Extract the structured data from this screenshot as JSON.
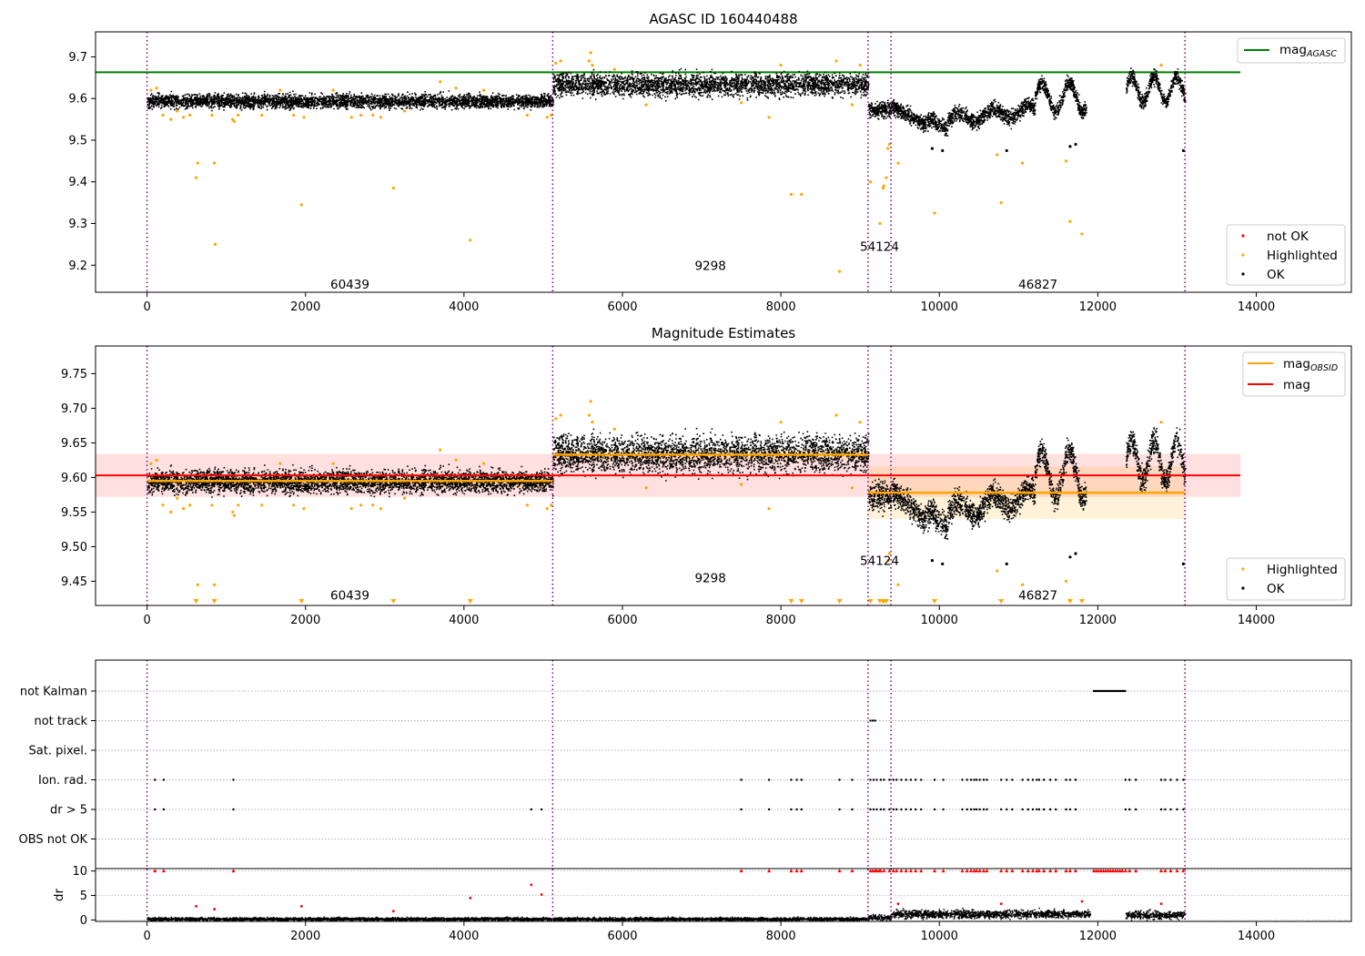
{
  "chart_data": [
    {
      "type": "scatter",
      "title": "AGASC ID 160440488",
      "xlim": [
        -650,
        15200
      ],
      "ylim": [
        9.135,
        9.76
      ],
      "x_ticks": [
        0,
        2000,
        4000,
        6000,
        8000,
        10000,
        12000,
        14000
      ],
      "y_ticks": [
        9.2,
        9.3,
        9.4,
        9.5,
        9.6,
        9.7
      ],
      "y_tick_labels": [
        "9.2",
        "9.3",
        "9.4",
        "9.5",
        "9.6",
        "9.7"
      ],
      "obs_boundaries": [
        0,
        5120,
        9100,
        9390,
        13100
      ],
      "obsids": [
        {
          "label": "60439",
          "x": 2560,
          "y": 9.155
        },
        {
          "label": "9298",
          "x": 7110,
          "y": 9.2
        },
        {
          "label": "54124",
          "x": 9245,
          "y": 9.245
        },
        {
          "label": "46827",
          "x": 11245,
          "y": 9.155
        }
      ],
      "hlines": [
        {
          "name": "mag_AGASC",
          "y": 9.663,
          "x0": -650,
          "x1": 13800,
          "color": "#008000"
        }
      ],
      "legend_top": {
        "placement": "top-right",
        "entries": [
          {
            "main": "mag",
            "sub": "AGASC",
            "color": "#008000"
          }
        ]
      },
      "legend_bottom": {
        "placement": "bottom-right",
        "entries": [
          {
            "label": "not OK",
            "color": "#ff0000"
          },
          {
            "label": "Highlighted",
            "color": "#ffa500"
          },
          {
            "label": "OK",
            "color": "#000000"
          }
        ]
      },
      "series": [
        {
          "name": "OK",
          "color": "#000000",
          "segments": [
            {
              "x0": 0,
              "x1": 5120,
              "model": "flat",
              "center": 9.595,
              "spread": 0.018
            },
            {
              "x0": 5120,
              "x1": 9100,
              "model": "flat",
              "center": 9.635,
              "spread": 0.03
            },
            {
              "x0": 9100,
              "x1": 9390,
              "model": "flat",
              "center": 9.575,
              "spread": 0.022
            },
            {
              "x0": 9390,
              "x1": 11850,
              "model": "wave",
              "spread": 0.02
            },
            {
              "x0": 12350,
              "x1": 13100,
              "model": "wave",
              "spread": 0.02
            }
          ]
        },
        {
          "name": "Highlighted",
          "color": "#ffa500",
          "points": [
            [
              50,
              9.62
            ],
            [
              120,
              9.625
            ],
            [
              200,
              9.56
            ],
            [
              300,
              9.55
            ],
            [
              380,
              9.57
            ],
            [
              460,
              9.555
            ],
            [
              540,
              9.56
            ],
            [
              620,
              9.41
            ],
            [
              640,
              9.445
            ],
            [
              820,
              9.56
            ],
            [
              850,
              9.445
            ],
            [
              860,
              9.25
            ],
            [
              1080,
              9.55
            ],
            [
              1100,
              9.545
            ],
            [
              1150,
              9.56
            ],
            [
              1450,
              9.56
            ],
            [
              1680,
              9.62
            ],
            [
              1850,
              9.56
            ],
            [
              1950,
              9.345
            ],
            [
              1980,
              9.555
            ],
            [
              2350,
              9.62
            ],
            [
              2580,
              9.555
            ],
            [
              2700,
              9.56
            ],
            [
              2850,
              9.56
            ],
            [
              2950,
              9.555
            ],
            [
              3110,
              9.385
            ],
            [
              3250,
              9.57
            ],
            [
              3700,
              9.64
            ],
            [
              3900,
              9.625
            ],
            [
              4080,
              9.26
            ],
            [
              4250,
              9.62
            ],
            [
              4800,
              9.56
            ],
            [
              5050,
              9.555
            ],
            [
              5100,
              9.56
            ],
            [
              5160,
              9.685
            ],
            [
              5220,
              9.69
            ],
            [
              5580,
              9.69
            ],
            [
              5600,
              9.71
            ],
            [
              5620,
              9.68
            ],
            [
              5900,
              9.67
            ],
            [
              6300,
              9.585
            ],
            [
              7500,
              9.59
            ],
            [
              7850,
              9.555
            ],
            [
              8000,
              9.68
            ],
            [
              8130,
              9.37
            ],
            [
              8260,
              9.37
            ],
            [
              8700,
              9.69
            ],
            [
              8740,
              9.185
            ],
            [
              8900,
              9.585
            ],
            [
              9000,
              9.68
            ],
            [
              9130,
              9.4
            ],
            [
              9250,
              9.3
            ],
            [
              9290,
              9.385
            ],
            [
              9300,
              9.39
            ],
            [
              9330,
              9.41
            ],
            [
              9350,
              9.48
            ],
            [
              9370,
              9.49
            ],
            [
              9480,
              9.445
            ],
            [
              9940,
              9.325
            ],
            [
              10730,
              9.465
            ],
            [
              10780,
              9.35
            ],
            [
              11050,
              9.445
            ],
            [
              11600,
              9.45
            ],
            [
              11650,
              9.305
            ],
            [
              11800,
              9.275
            ],
            [
              12800,
              9.68
            ]
          ]
        },
        {
          "name": "OK outliers",
          "color": "#000000",
          "points": [
            [
              9910,
              9.48
            ],
            [
              10040,
              9.475
            ],
            [
              10850,
              9.475
            ],
            [
              11650,
              9.485
            ],
            [
              11720,
              9.49
            ],
            [
              13080,
              9.475
            ]
          ]
        }
      ]
    },
    {
      "type": "scatter",
      "title": "Magnitude Estimates",
      "xlim": [
        -650,
        15200
      ],
      "ylim": [
        9.415,
        9.79
      ],
      "x_ticks": [
        0,
        2000,
        4000,
        6000,
        8000,
        10000,
        12000,
        14000
      ],
      "y_ticks": [
        9.45,
        9.5,
        9.55,
        9.6,
        9.65,
        9.7,
        9.75
      ],
      "y_tick_labels": [
        "9.45",
        "9.50",
        "9.55",
        "9.60",
        "9.65",
        "9.70",
        "9.75"
      ],
      "obs_boundaries": [
        0,
        5120,
        9100,
        9390,
        13100
      ],
      "obsids": [
        {
          "label": "60439",
          "x": 2560,
          "y": 9.43
        },
        {
          "label": "9298",
          "x": 7110,
          "y": 9.455
        },
        {
          "label": "54124",
          "x": 9245,
          "y": 9.48
        },
        {
          "label": "46827",
          "x": 11245,
          "y": 9.43
        }
      ],
      "mag_line": {
        "name": "mag",
        "y": 9.603,
        "band": [
          9.572,
          9.634
        ],
        "x0": -650,
        "x1": 13800,
        "color": "#ff0000"
      },
      "mag_obsid": [
        {
          "x0": 0,
          "x1": 5120,
          "y": 9.595,
          "band": [
            9.585,
            9.605
          ]
        },
        {
          "x0": 5120,
          "x1": 9100,
          "y": 9.633,
          "band": [
            9.625,
            9.641
          ]
        },
        {
          "x0": 9100,
          "x1": 13100,
          "y": 9.578,
          "band": [
            9.54,
            9.616
          ]
        }
      ],
      "legend_top": {
        "placement": "top-right",
        "entries": [
          {
            "main": "mag",
            "sub": "OBSID",
            "color": "#ffa500"
          },
          {
            "main": "mag",
            "sub": "",
            "color": "#ff0000"
          }
        ]
      },
      "legend_bottom": {
        "placement": "bottom-right",
        "entries": [
          {
            "label": "Highlighted",
            "color": "#ffa500"
          },
          {
            "label": "OK",
            "color": "#000000"
          }
        ]
      },
      "offscale_markers_x": [
        620,
        850,
        1950,
        3110,
        4080,
        8130,
        8260,
        8740,
        9130,
        9250,
        9290,
        9300,
        9330,
        9940,
        10780,
        11650,
        11800
      ]
    },
    {
      "type": "scatter",
      "xlim": [
        -650,
        15200
      ],
      "x_ticks": [
        0,
        2000,
        4000,
        6000,
        8000,
        10000,
        12000,
        14000
      ],
      "obs_boundaries": [
        0,
        5120,
        9100,
        9390,
        13100
      ],
      "flag_rows": [
        "not Kalman",
        "not track",
        "Sat. pixel.",
        "Ion. rad.",
        "dr > 5",
        "OBS not OK"
      ],
      "flags": {
        "not Kalman": {
          "ranges": [
            [
              11950,
              12350
            ]
          ],
          "points": []
        },
        "not track": {
          "ranges": [],
          "points": [
            9130,
            9160,
            9190
          ]
        },
        "Sat. pixel.": {
          "ranges": [],
          "points": []
        },
        "Ion. rad.": {
          "ranges": [],
          "points": [
            100,
            210,
            1090,
            7500,
            7850,
            8130,
            8200,
            8260,
            8740,
            8900,
            9130,
            9170,
            9210,
            9260,
            9300,
            9370,
            9420,
            9460,
            9520,
            9580,
            9640,
            9700,
            9770,
            9940,
            10050,
            10290,
            10350,
            10400,
            10440,
            10470,
            10510,
            10560,
            10600,
            10780,
            10850,
            10920,
            11050,
            11120,
            11180,
            11230,
            11260,
            11320,
            11400,
            11470,
            11600,
            11650,
            11720,
            12350,
            12400,
            12480,
            12800,
            12850,
            12920,
            13000,
            13080
          ]
        },
        "dr > 5": {
          "ranges": [],
          "points": [
            100,
            210,
            1090,
            4850,
            4980,
            7500,
            7850,
            8130,
            8200,
            8260,
            8740,
            8900,
            9130,
            9170,
            9210,
            9260,
            9300,
            9370,
            9420,
            9460,
            9520,
            9580,
            9640,
            9700,
            9770,
            9940,
            10050,
            10290,
            10350,
            10400,
            10440,
            10470,
            10510,
            10560,
            10600,
            10780,
            10850,
            10920,
            11050,
            11120,
            11180,
            11230,
            11260,
            11320,
            11400,
            11470,
            11600,
            11650,
            11720,
            12350,
            12400,
            12480,
            12800,
            12850,
            12920,
            13000,
            13080
          ]
        },
        "OBS not OK": {
          "ranges": [],
          "points": []
        }
      },
      "dr": {
        "ylabel": "dr",
        "ylim": [
          -0.3,
          10.5
        ],
        "y_ticks": [
          0,
          5,
          10
        ],
        "clip_value": 10,
        "baseline_segments": [
          {
            "x0": 0,
            "x1": 9100,
            "center": 0.3,
            "spread": 0.3
          },
          {
            "x0": 9100,
            "x1": 9390,
            "center": 0.6,
            "spread": 0.5
          },
          {
            "x0": 9390,
            "x1": 11900,
            "center": 1.3,
            "spread": 0.8
          },
          {
            "x0": 12350,
            "x1": 13100,
            "center": 1.1,
            "spread": 0.8
          }
        ],
        "red_points": [
          [
            620,
            2.8
          ],
          [
            850,
            2.2
          ],
          [
            1950,
            2.8
          ],
          [
            3110,
            1.8
          ],
          [
            4080,
            4.5
          ],
          [
            4850,
            7.2
          ],
          [
            4980,
            5.2
          ],
          [
            9480,
            3.3
          ],
          [
            10780,
            3.3
          ],
          [
            11800,
            3.8
          ],
          [
            12800,
            3.3
          ]
        ],
        "clipped_x": [
          100,
          210,
          1090,
          7500,
          7850,
          8130,
          8200,
          8260,
          8740,
          8900,
          9130,
          9160,
          9190,
          9210,
          9240,
          9260,
          9300,
          9370,
          9420,
          9460,
          9520,
          9580,
          9640,
          9700,
          9770,
          9940,
          10050,
          10290,
          10350,
          10400,
          10440,
          10470,
          10510,
          10560,
          10600,
          10780,
          10850,
          10920,
          11050,
          11120,
          11180,
          11230,
          11260,
          11320,
          11400,
          11470,
          11600,
          11650,
          11720,
          11950,
          11980,
          12010,
          12040,
          12070,
          12100,
          12130,
          12160,
          12190,
          12220,
          12250,
          12280,
          12310,
          12350,
          12400,
          12480,
          12800,
          12850,
          12920,
          13000,
          13080
        ]
      }
    }
  ]
}
